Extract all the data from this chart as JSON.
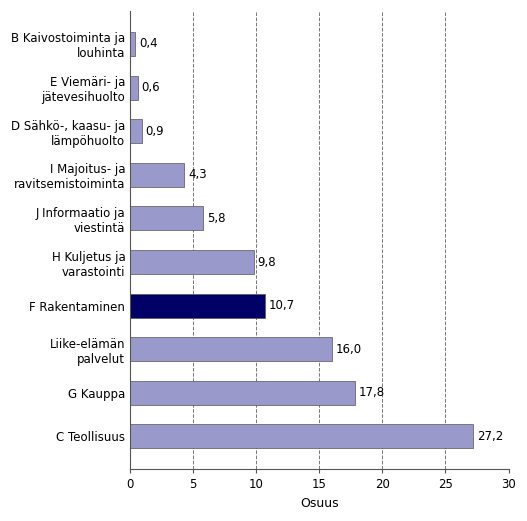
{
  "categories": [
    "C Teollisuus",
    "G Kauppa",
    "Liike-elämän\npalvelut",
    "F Rakentaminen",
    "H Kuljetus ja\nvarastointi",
    "J Informaatio ja\nviestintä",
    "I Majoitus- ja\nravitsemistoiminta",
    "D Sähkö-, kaasu- ja\nlämpöhuolto",
    "E Viemäri- ja\njätevesihuolto",
    "B Kaivostoiminta ja\nlouhinta"
  ],
  "values": [
    27.2,
    17.8,
    16.0,
    10.7,
    9.8,
    5.8,
    4.3,
    0.9,
    0.6,
    0.4
  ],
  "bar_colors": [
    "#9999cc",
    "#9999cc",
    "#9999cc",
    "#000066",
    "#9999cc",
    "#9999cc",
    "#9999cc",
    "#9999cc",
    "#9999cc",
    "#9999cc"
  ],
  "xlabel": "Osuus",
  "xlim": [
    0,
    30
  ],
  "xticks": [
    0,
    5,
    10,
    15,
    20,
    25,
    30
  ],
  "grid_color": "#777777",
  "bar_edge_color": "#555555",
  "background_color": "#ffffff",
  "label_fontsize": 8.5,
  "xlabel_fontsize": 9,
  "value_label_fontsize": 8.5,
  "bar_height": 0.55
}
